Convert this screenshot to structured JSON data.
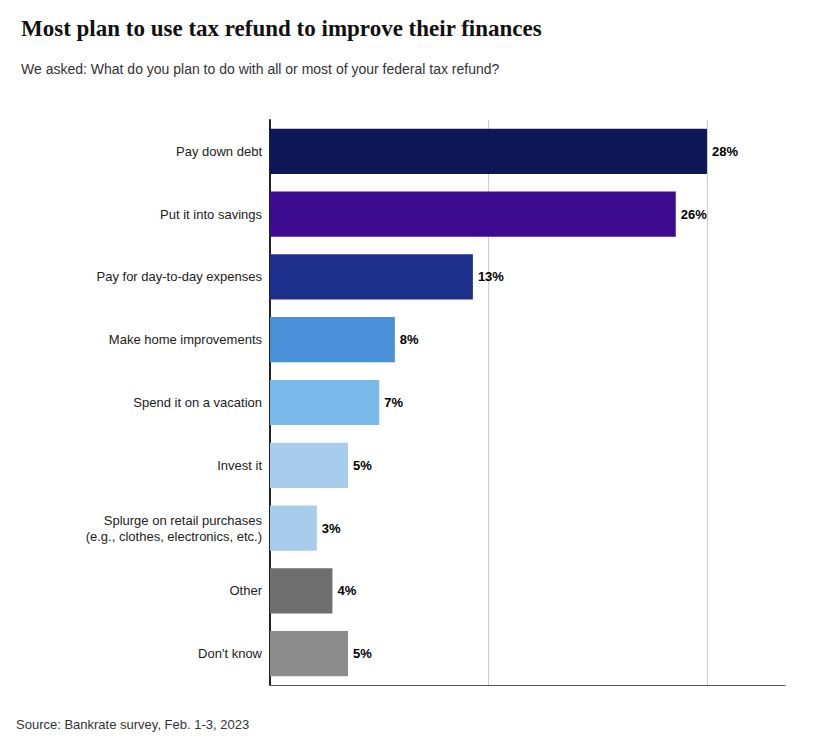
{
  "chart_data": {
    "type": "bar",
    "orientation": "horizontal",
    "title": "Most plan to use tax refund to improve their finances",
    "subtitle": "We asked: What do you plan to do with all or most of your federal tax refund?",
    "annotations": [
      "Source: Bankrate survey, Feb. 1-3, 2023"
    ],
    "categories": [
      "Don't know",
      "Other",
      "Splurge on retail purchases\n(e.g., clothes, electronics, etc.)",
      "Invest it",
      "Spend it on a vacation",
      "Make home improvements",
      "Pay for day-to-day expenses",
      "Put it into savings",
      "Pay down debt"
    ],
    "values": [
      5,
      4,
      3,
      5,
      7,
      8,
      13,
      26,
      28
    ],
    "value_labels": [
      "5%",
      "4%",
      "3%",
      "5%",
      "7%",
      "8%",
      "13%",
      "26%",
      "28%"
    ],
    "colors": [
      "#8C8C8C",
      "#6E6E6E",
      "#A8CCEC",
      "#A8CCEC",
      "#7ABAEB",
      "#4A90D9",
      "#1C2F8A",
      "#3B0A8F",
      "#0D1755"
    ],
    "xlim": [
      0,
      33
    ],
    "xticks": [
      14,
      28
    ],
    "grid": true,
    "data_labels": true,
    "tick_labels": "y"
  }
}
